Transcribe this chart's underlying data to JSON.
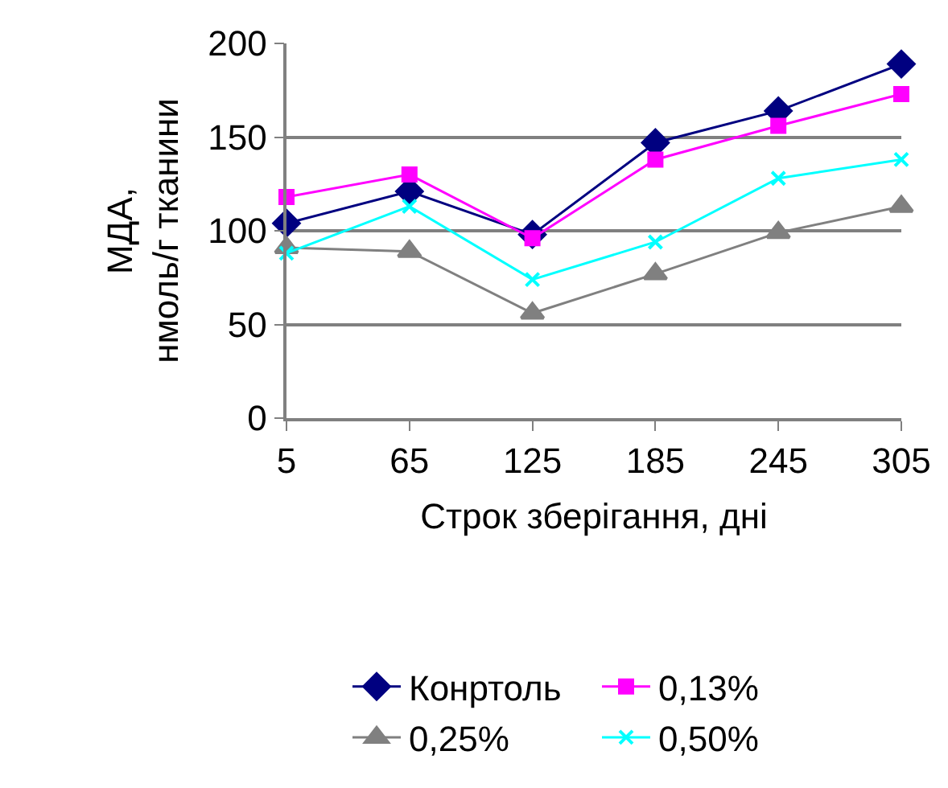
{
  "chart_data": {
    "type": "line",
    "xlabel": "Строк зберігання, дні",
    "ylabel": "МДА,\nнмоль/г тканини",
    "x": [
      5,
      65,
      125,
      185,
      245,
      305
    ],
    "xlim": [
      5,
      305
    ],
    "xticks": [
      5,
      65,
      125,
      185,
      245,
      305
    ],
    "ylim": [
      0,
      200
    ],
    "yticks": [
      0,
      50,
      100,
      150,
      200
    ],
    "grid": "y",
    "legend": "bottom",
    "line_style": "solid",
    "series": [
      {
        "name": "Конртоль",
        "color": "#000080",
        "marker": "diamond",
        "values": [
          104,
          121,
          98,
          147,
          164,
          189
        ]
      },
      {
        "name": "0,13%",
        "color": "#ff00ff",
        "marker": "square",
        "values": [
          118,
          130,
          96,
          138,
          156,
          173
        ]
      },
      {
        "name": "0,25%",
        "color": "#808080",
        "marker": "triangle",
        "values": [
          91,
          89,
          56,
          77,
          99,
          113
        ]
      },
      {
        "name": "0,50%",
        "color": "#00ffff",
        "marker": "cross",
        "values": [
          88,
          113,
          74,
          94,
          128,
          138
        ]
      }
    ]
  }
}
